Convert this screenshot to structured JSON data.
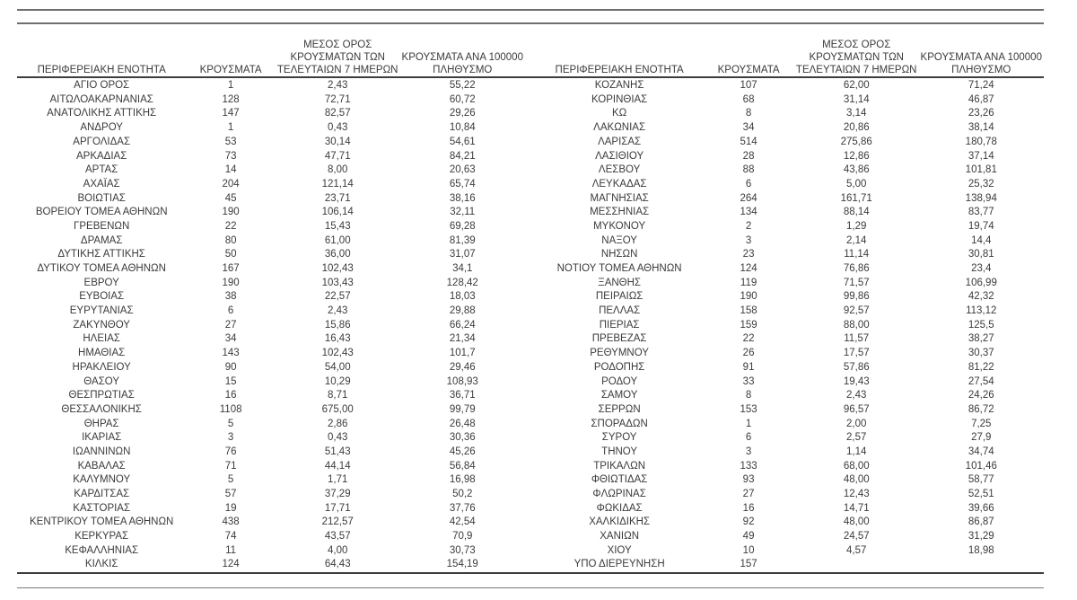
{
  "table": {
    "headers": {
      "region": "ΠΕΡΙΦΕΡΕΙΑΚΗ ΕΝΟΤΗΤΑ",
      "cases": "ΚΡΟΥΣΜΑΤΑ",
      "avg7_line1": "ΜΕΣΟΣ ΟΡΟΣ",
      "avg7_line2": "ΚΡΟΥΣΜΑΤΩΝ ΤΩΝ",
      "avg7_line3": "ΤΕΛΕΥΤΑΙΩΝ 7 ΗΜΕΡΩΝ",
      "per100k_line1": "ΚΡΟΥΣΜΑΤΑ ΑΝΑ 100000",
      "per100k_line2": "ΠΛΗΘΥΣΜΟ"
    },
    "left_rows": [
      [
        "ΑΓΙΟ ΟΡΟΣ",
        "1",
        "2,43",
        "55,22"
      ],
      [
        "ΑΙΤΩΛΟΑΚΑΡΝΑΝΙΑΣ",
        "128",
        "72,71",
        "60,72"
      ],
      [
        "ΑΝΑΤΟΛΙΚΗΣ ΑΤΤΙΚΗΣ",
        "147",
        "82,57",
        "29,26"
      ],
      [
        "ΑΝΔΡΟΥ",
        "1",
        "0,43",
        "10,84"
      ],
      [
        "ΑΡΓΟΛΙΔΑΣ",
        "53",
        "30,14",
        "54,61"
      ],
      [
        "ΑΡΚΑΔΙΑΣ",
        "73",
        "47,71",
        "84,21"
      ],
      [
        "ΑΡΤΑΣ",
        "14",
        "8,00",
        "20,63"
      ],
      [
        "ΑΧΑΪΑΣ",
        "204",
        "121,14",
        "65,74"
      ],
      [
        "ΒΟΙΩΤΙΑΣ",
        "45",
        "23,71",
        "38,16"
      ],
      [
        "ΒΟΡΕΙΟΥ ΤΟΜΕΑ ΑΘΗΝΩΝ",
        "190",
        "106,14",
        "32,11"
      ],
      [
        "ΓΡΕΒΕΝΩΝ",
        "22",
        "15,43",
        "69,28"
      ],
      [
        "ΔΡΑΜΑΣ",
        "80",
        "61,00",
        "81,39"
      ],
      [
        "ΔΥΤΙΚΗΣ ΑΤΤΙΚΗΣ",
        "50",
        "36,00",
        "31,07"
      ],
      [
        "ΔΥΤΙΚΟΥ ΤΟΜΕΑ ΑΘΗΝΩΝ",
        "167",
        "102,43",
        "34,1"
      ],
      [
        "ΕΒΡΟΥ",
        "190",
        "103,43",
        "128,42"
      ],
      [
        "ΕΥΒΟΙΑΣ",
        "38",
        "22,57",
        "18,03"
      ],
      [
        "ΕΥΡΥΤΑΝΙΑΣ",
        "6",
        "2,43",
        "29,88"
      ],
      [
        "ΖΑΚΥΝΘΟΥ",
        "27",
        "15,86",
        "66,24"
      ],
      [
        "ΗΛΕΙΑΣ",
        "34",
        "16,43",
        "21,34"
      ],
      [
        "ΗΜΑΘΙΑΣ",
        "143",
        "102,43",
        "101,7"
      ],
      [
        "ΗΡΑΚΛΕΙΟΥ",
        "90",
        "54,00",
        "29,46"
      ],
      [
        "ΘΑΣΟΥ",
        "15",
        "10,29",
        "108,93"
      ],
      [
        "ΘΕΣΠΡΩΤΙΑΣ",
        "16",
        "8,71",
        "36,71"
      ],
      [
        "ΘΕΣΣΑΛΟΝΙΚΗΣ",
        "1108",
        "675,00",
        "99,79"
      ],
      [
        "ΘΗΡΑΣ",
        "5",
        "2,86",
        "26,48"
      ],
      [
        "ΙΚΑΡΙΑΣ",
        "3",
        "0,43",
        "30,36"
      ],
      [
        "ΙΩΑΝΝΙΝΩΝ",
        "76",
        "51,43",
        "45,26"
      ],
      [
        "ΚΑΒΑΛΑΣ",
        "71",
        "44,14",
        "56,84"
      ],
      [
        "ΚΑΛΥΜΝΟΥ",
        "5",
        "1,71",
        "16,98"
      ],
      [
        "ΚΑΡΔΙΤΣΑΣ",
        "57",
        "37,29",
        "50,2"
      ],
      [
        "ΚΑΣΤΟΡΙΑΣ",
        "19",
        "17,71",
        "37,76"
      ],
      [
        "ΚΕΝΤΡΙΚΟΥ ΤΟΜΕΑ ΑΘΗΝΩΝ",
        "438",
        "212,57",
        "42,54"
      ],
      [
        "ΚΕΡΚΥΡΑΣ",
        "74",
        "43,57",
        "70,9"
      ],
      [
        "ΚΕΦΑΛΛΗΝΙΑΣ",
        "11",
        "4,00",
        "30,73"
      ],
      [
        "ΚΙΛΚΙΣ",
        "124",
        "64,43",
        "154,19"
      ]
    ],
    "right_rows": [
      [
        "ΚΟΖΑΝΗΣ",
        "107",
        "62,00",
        "71,24"
      ],
      [
        "ΚΟΡΙΝΘΙΑΣ",
        "68",
        "31,14",
        "46,87"
      ],
      [
        "ΚΩ",
        "8",
        "3,14",
        "23,26"
      ],
      [
        "ΛΑΚΩΝΙΑΣ",
        "34",
        "20,86",
        "38,14"
      ],
      [
        "ΛΑΡΙΣΑΣ",
        "514",
        "275,86",
        "180,78"
      ],
      [
        "ΛΑΣΙΘΙΟΥ",
        "28",
        "12,86",
        "37,14"
      ],
      [
        "ΛΕΣΒΟΥ",
        "88",
        "43,86",
        "101,81"
      ],
      [
        "ΛΕΥΚΑΔΑΣ",
        "6",
        "5,00",
        "25,32"
      ],
      [
        "ΜΑΓΝΗΣΙΑΣ",
        "264",
        "161,71",
        "138,94"
      ],
      [
        "ΜΕΣΣΗΝΙΑΣ",
        "134",
        "88,14",
        "83,77"
      ],
      [
        "ΜΥΚΟΝΟΥ",
        "2",
        "1,29",
        "19,74"
      ],
      [
        "ΝΑΞΟΥ",
        "3",
        "2,14",
        "14,4"
      ],
      [
        "ΝΗΣΩΝ",
        "23",
        "11,14",
        "30,81"
      ],
      [
        "ΝΟΤΙΟΥ ΤΟΜΕΑ ΑΘΗΝΩΝ",
        "124",
        "76,86",
        "23,4"
      ],
      [
        "ΞΑΝΘΗΣ",
        "119",
        "71,57",
        "106,99"
      ],
      [
        "ΠΕΙΡΑΙΩΣ",
        "190",
        "99,86",
        "42,32"
      ],
      [
        "ΠΕΛΛΑΣ",
        "158",
        "92,57",
        "113,12"
      ],
      [
        "ΠΙΕΡΙΑΣ",
        "159",
        "88,00",
        "125,5"
      ],
      [
        "ΠΡΕΒΕΖΑΣ",
        "22",
        "11,57",
        "38,27"
      ],
      [
        "ΡΕΘΥΜΝΟΥ",
        "26",
        "17,57",
        "30,37"
      ],
      [
        "ΡΟΔΟΠΗΣ",
        "91",
        "57,86",
        "81,22"
      ],
      [
        "ΡΟΔΟΥ",
        "33",
        "19,43",
        "27,54"
      ],
      [
        "ΣΑΜΟΥ",
        "8",
        "2,43",
        "24,26"
      ],
      [
        "ΣΕΡΡΩΝ",
        "153",
        "96,57",
        "86,72"
      ],
      [
        "ΣΠΟΡΑΔΩΝ",
        "1",
        "2,00",
        "7,25"
      ],
      [
        "ΣΥΡΟΥ",
        "6",
        "2,57",
        "27,9"
      ],
      [
        "ΤΗΝΟΥ",
        "3",
        "1,14",
        "34,74"
      ],
      [
        "ΤΡΙΚΑΛΩΝ",
        "133",
        "68,00",
        "101,46"
      ],
      [
        "ΦΘΙΩΤΙΔΑΣ",
        "93",
        "48,00",
        "58,77"
      ],
      [
        "ΦΛΩΡΙΝΑΣ",
        "27",
        "12,43",
        "52,51"
      ],
      [
        "ΦΩΚΙΔΑΣ",
        "16",
        "14,71",
        "39,66"
      ],
      [
        "ΧΑΛΚΙΔΙΚΗΣ",
        "92",
        "48,00",
        "86,87"
      ],
      [
        "ΧΑΝΙΩΝ",
        "49",
        "24,57",
        "31,29"
      ],
      [
        "ΧΙΟΥ",
        "10",
        "4,57",
        "18,98"
      ],
      [
        "ΥΠΟ ΔΙΕΡΕΥΝΗΣΗ",
        "157",
        "",
        ""
      ]
    ]
  },
  "colors": {
    "text": "#3b3b3b",
    "rule_dark": "#3d3d3d",
    "rule_gray": "#6f6f6f"
  }
}
